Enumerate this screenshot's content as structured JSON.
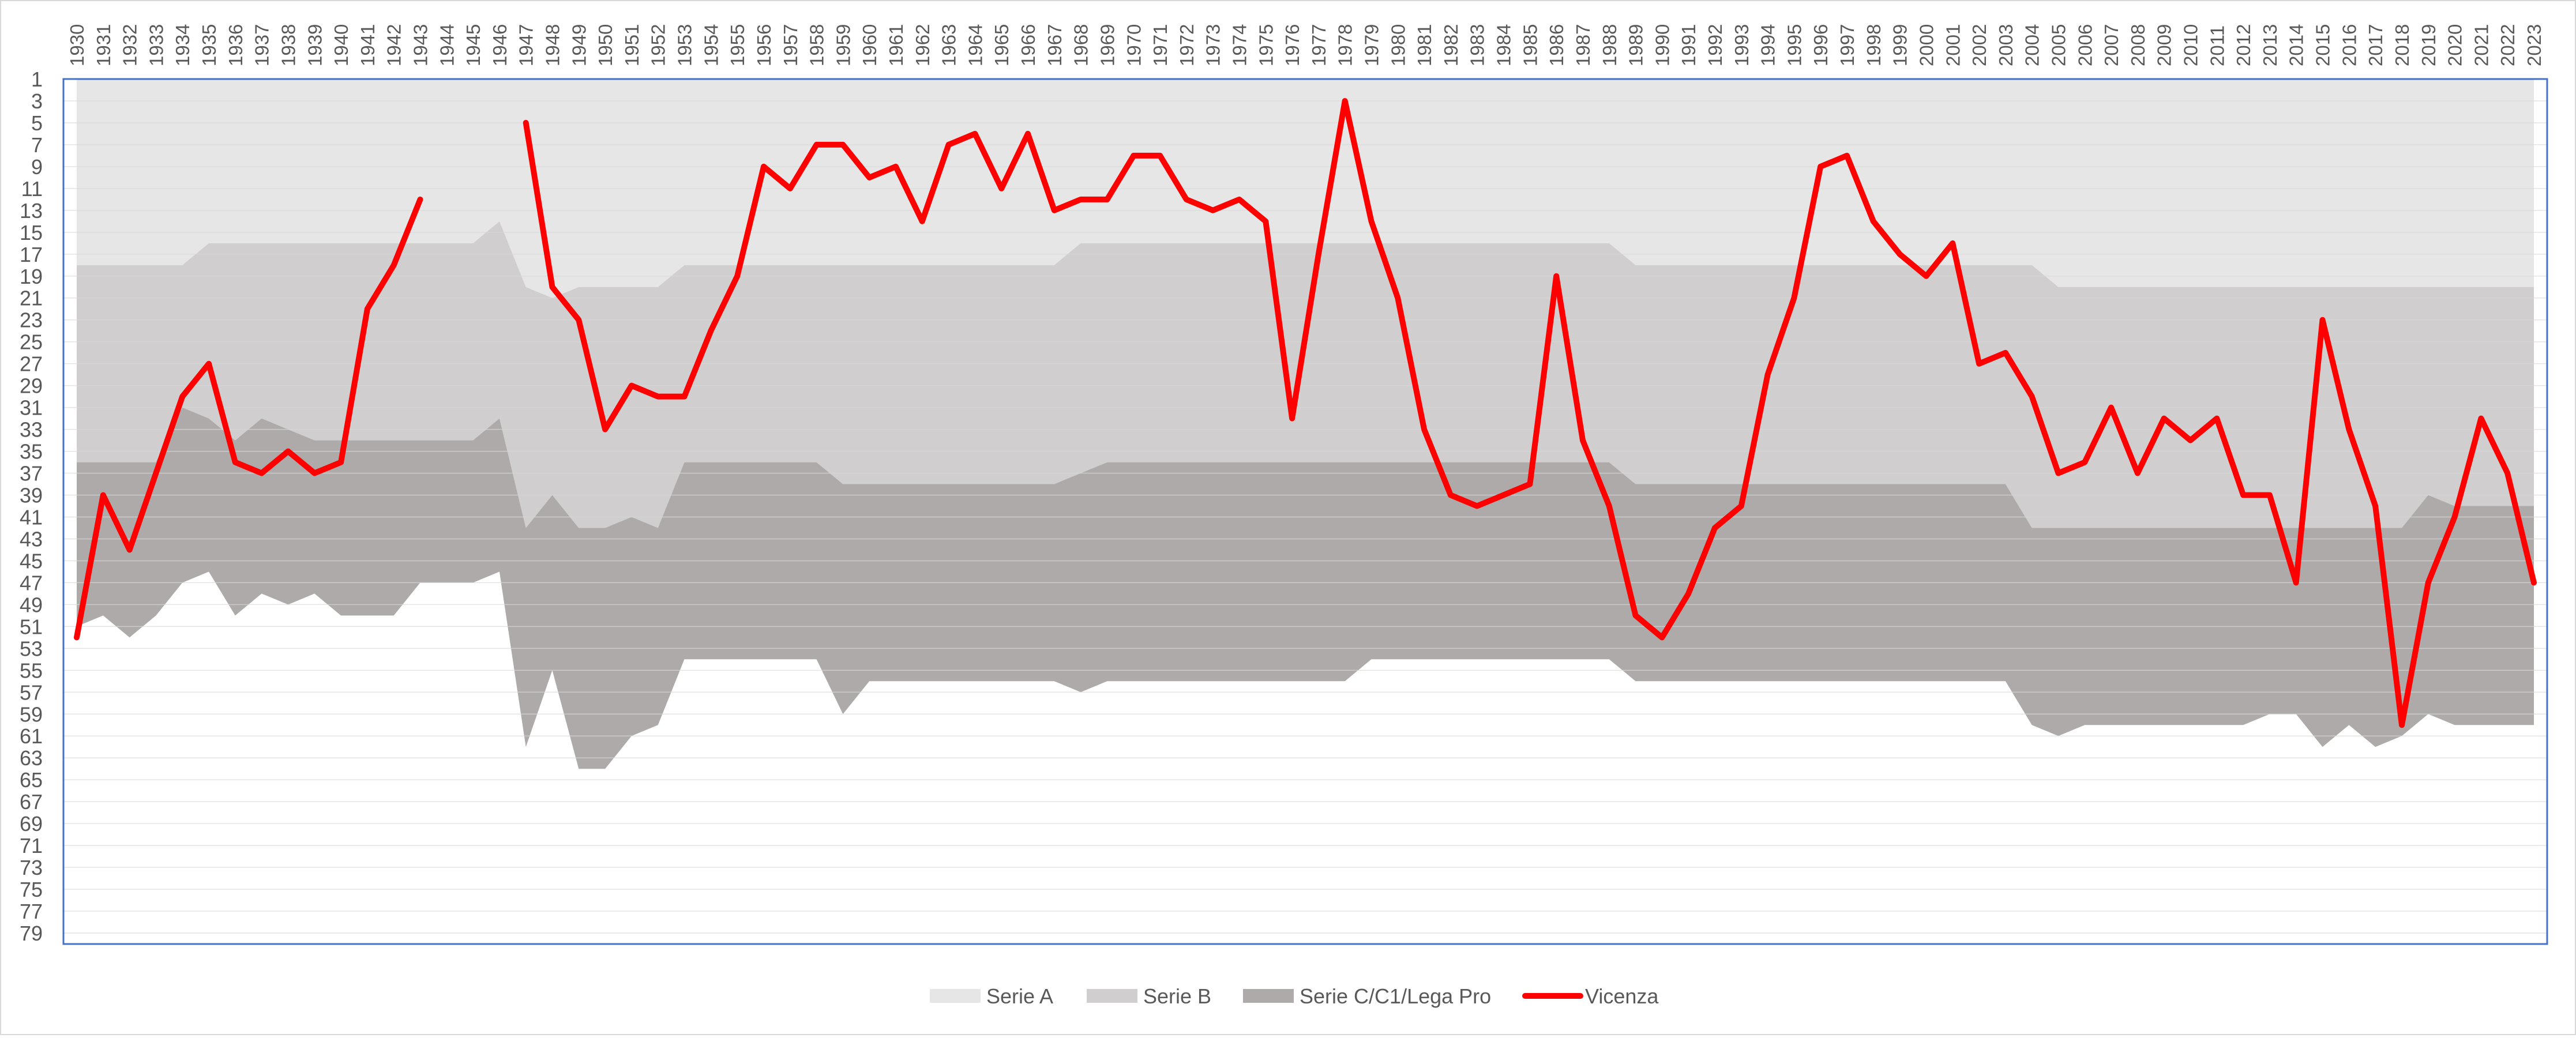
{
  "chart_data": {
    "type": "area",
    "title": "",
    "xlabel": "",
    "ylabel": "",
    "x_axis_position": "top",
    "y_axis_reversed": true,
    "ylim": [
      1,
      80
    ],
    "y_ticks": [
      1,
      3,
      5,
      7,
      9,
      11,
      13,
      15,
      17,
      19,
      21,
      23,
      25,
      27,
      29,
      31,
      33,
      35,
      37,
      39,
      41,
      43,
      45,
      47,
      49,
      51,
      53,
      55,
      57,
      59,
      61,
      63,
      65,
      67,
      69,
      71,
      73,
      75,
      77,
      79
    ],
    "grid": true,
    "legend_position": "bottom",
    "x": [
      "1930",
      "1931",
      "1932",
      "1933",
      "1934",
      "1935",
      "1936",
      "1937",
      "1938",
      "1939",
      "1940",
      "1941",
      "1942",
      "1943",
      "1944",
      "1945",
      "1946",
      "1947",
      "1948",
      "1949",
      "1950",
      "1951",
      "1952",
      "1953",
      "1954",
      "1955",
      "1956",
      "1957",
      "1958",
      "1959",
      "1960",
      "1961",
      "1962",
      "1963",
      "1964",
      "1965",
      "1966",
      "1967",
      "1968",
      "1969",
      "1970",
      "1971",
      "1972",
      "1973",
      "1974",
      "1975",
      "1976",
      "1977",
      "1978",
      "1979",
      "1980",
      "1981",
      "1982",
      "1983",
      "1984",
      "1985",
      "1986",
      "1987",
      "1988",
      "1989",
      "1990",
      "1991",
      "1992",
      "1993",
      "1994",
      "1995",
      "1996",
      "1997",
      "1998",
      "1999",
      "2000",
      "2001",
      "2002",
      "2003",
      "2004",
      "2005",
      "2006",
      "2007",
      "2008",
      "2009",
      "2010",
      "2011",
      "2012",
      "2013",
      "2014",
      "2015",
      "2016",
      "2017",
      "2018",
      "2019",
      "2020",
      "2021",
      "2022",
      "2023"
    ],
    "series": [
      {
        "name": "Serie A",
        "role": "band",
        "color": "#e7e6e6",
        "lower": [
          18,
          18,
          18,
          18,
          18,
          16,
          16,
          16,
          16,
          16,
          16,
          16,
          16,
          16,
          16,
          16,
          14,
          20,
          21,
          20,
          20,
          20,
          20,
          18,
          18,
          18,
          18,
          18,
          18,
          18,
          18,
          18,
          18,
          18,
          18,
          18,
          18,
          18,
          16,
          16,
          16,
          16,
          16,
          16,
          16,
          16,
          16,
          16,
          16,
          16,
          16,
          16,
          16,
          16,
          16,
          16,
          16,
          16,
          16,
          18,
          18,
          18,
          18,
          18,
          18,
          18,
          18,
          18,
          18,
          18,
          18,
          18,
          18,
          18,
          18,
          20,
          20,
          20,
          20,
          20,
          20,
          20,
          20,
          20,
          20,
          20,
          20,
          20,
          20,
          20,
          20,
          20,
          20,
          20
        ]
      },
      {
        "name": "Serie B",
        "role": "band",
        "color": "#d0cece",
        "lower": [
          36,
          36,
          36,
          36,
          31,
          32,
          34,
          32,
          33,
          34,
          34,
          34,
          34,
          34,
          34,
          34,
          32,
          42,
          39,
          42,
          42,
          41,
          42,
          36,
          36,
          36,
          36,
          36,
          36,
          38,
          38,
          38,
          38,
          38,
          38,
          38,
          38,
          38,
          37,
          36,
          36,
          36,
          36,
          36,
          36,
          36,
          36,
          36,
          36,
          36,
          36,
          36,
          36,
          36,
          36,
          36,
          36,
          36,
          36,
          38,
          38,
          38,
          38,
          38,
          38,
          38,
          38,
          38,
          38,
          38,
          38,
          38,
          38,
          38,
          42,
          42,
          42,
          42,
          42,
          42,
          42,
          42,
          42,
          42,
          42,
          42,
          42,
          42,
          42,
          39,
          40,
          40,
          40,
          40
        ]
      },
      {
        "name": "Serie C/C1/Lega Pro",
        "role": "band",
        "color": "#aeaaaa",
        "lower": [
          51,
          50,
          52,
          50,
          47,
          46,
          50,
          48,
          49,
          48,
          50,
          50,
          50,
          47,
          47,
          47,
          46,
          62,
          55,
          64,
          64,
          61,
          60,
          54,
          54,
          54,
          54,
          54,
          54,
          59,
          56,
          56,
          56,
          56,
          56,
          56,
          56,
          56,
          57,
          56,
          56,
          56,
          56,
          56,
          56,
          56,
          56,
          56,
          56,
          54,
          54,
          54,
          54,
          54,
          54,
          54,
          54,
          54,
          54,
          56,
          56,
          56,
          56,
          56,
          56,
          56,
          56,
          56,
          56,
          56,
          56,
          56,
          56,
          56,
          60,
          61,
          60,
          60,
          60,
          60,
          60,
          60,
          60,
          59,
          59,
          62,
          60,
          62,
          61,
          59,
          60,
          60,
          60,
          60
        ]
      },
      {
        "name": "Vicenza",
        "role": "line",
        "color": "#ff0000",
        "values": [
          52,
          39,
          44,
          37,
          30,
          27,
          36,
          37,
          35,
          37,
          36,
          22,
          18,
          12,
          null,
          null,
          null,
          5,
          20,
          23,
          33,
          29,
          30,
          30,
          24,
          19,
          9,
          11,
          7,
          7,
          10,
          9,
          14,
          7,
          6,
          11,
          6,
          13,
          12,
          12,
          8,
          8,
          12,
          13,
          12,
          14,
          32,
          17,
          3,
          14,
          21,
          33,
          39,
          40,
          39,
          38,
          19,
          34,
          40,
          50,
          52,
          48,
          42,
          40,
          28,
          21,
          9,
          8,
          14,
          17,
          19,
          16,
          27,
          26,
          30,
          37,
          36,
          31,
          37,
          32,
          34,
          32,
          39,
          39,
          47,
          23,
          33,
          40,
          60,
          47,
          41,
          32,
          37,
          47
        ]
      }
    ]
  }
}
